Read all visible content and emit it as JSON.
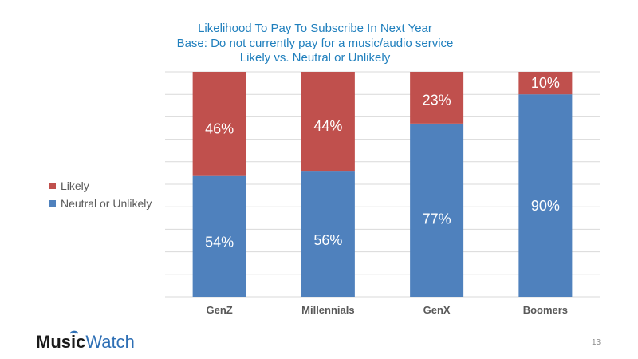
{
  "chart_data": {
    "type": "bar",
    "stacked": true,
    "title": "Likelihood To Pay To Subscribe In Next Year",
    "subtitle_lines": [
      "Base: Do not currently pay for a music/audio service",
      "Likely vs. Neutral or Unlikely"
    ],
    "categories": [
      "GenZ",
      "Millennials",
      "GenX",
      "Boomers"
    ],
    "series": [
      {
        "name": "Neutral or Unlikely",
        "values": [
          54,
          56,
          77,
          90
        ],
        "labels": [
          "54%",
          "56%",
          "77%",
          "90%"
        ]
      },
      {
        "name": "Likely",
        "values": [
          46,
          44,
          23,
          10
        ],
        "labels": [
          "46%",
          "44%",
          "23%",
          "10%"
        ]
      }
    ],
    "ylim": [
      0,
      100
    ],
    "grid": true,
    "legend_position": "left"
  },
  "colors": {
    "neutral": "#4f81bd",
    "likely": "#c0504d",
    "grid": "#d9d9d9",
    "title": "#1f7fbd"
  },
  "legend": {
    "items": [
      {
        "label": "Likely",
        "color": "#c0504d"
      },
      {
        "label": "Neutral or Unlikely",
        "color": "#4f81bd"
      }
    ]
  },
  "logo": {
    "part1": "Music",
    "part2": "Watch"
  },
  "page_number": "13"
}
